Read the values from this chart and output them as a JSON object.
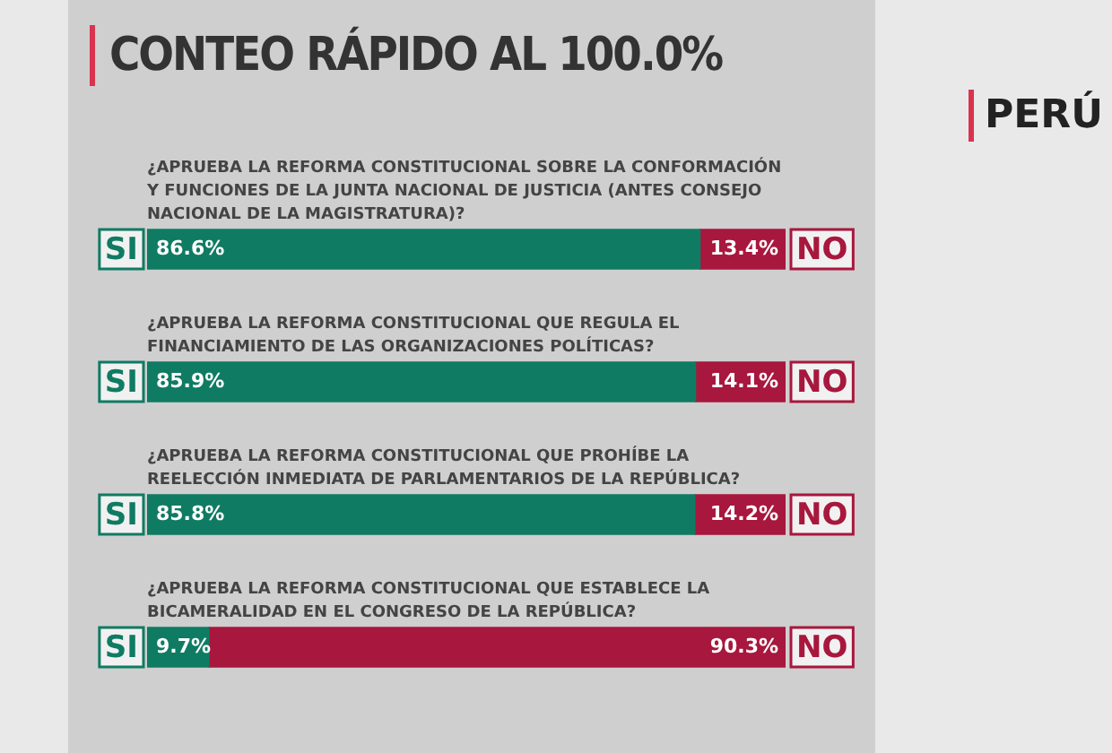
{
  "chart_data": {
    "type": "bar",
    "orientation": "horizontal",
    "stacked": true,
    "title": "CONTEO RÁPIDO AL 100.0%",
    "annotations": [
      "PERÚ"
    ],
    "categories": [
      "¿APRUEBA LA REFORMA CONSTITUCIONAL SOBRE LA CONFORMACIÓN Y FUNCIONES DE LA JUNTA NACIONAL DE JUSTICIA (ANTES CONSEJO NACIONAL DE LA MAGISTRATURA)?",
      "¿APRUEBA LA REFORMA CONSTITUCIONAL QUE REGULA EL FINANCIAMIENTO DE LAS ORGANIZACIONES POLÍTICAS?",
      "¿APRUEBA LA REFORMA CONSTITUCIONAL QUE PROHÍBE LA REELECCIÓN INMEDIATA DE PARLAMENTARIOS DE LA REPÚBLICA?",
      "¿APRUEBA LA REFORMA CONSTITUCIONAL QUE ESTABLECE LA BICAMERALIDAD EN EL CONGRESO DE LA REPÚBLICA?"
    ],
    "series": [
      {
        "name": "SI",
        "color": "#0f7b63",
        "values": [
          86.6,
          85.9,
          85.8,
          9.7
        ],
        "value_labels": [
          "86.6%",
          "85.9%",
          "85.8%",
          "9.7%"
        ]
      },
      {
        "name": "NO",
        "color": "#a8173d",
        "values": [
          13.4,
          14.1,
          14.2,
          90.3
        ],
        "value_labels": [
          "13.4%",
          "14.1%",
          "14.2%",
          "90.3%"
        ]
      }
    ],
    "legend": false
  }
}
